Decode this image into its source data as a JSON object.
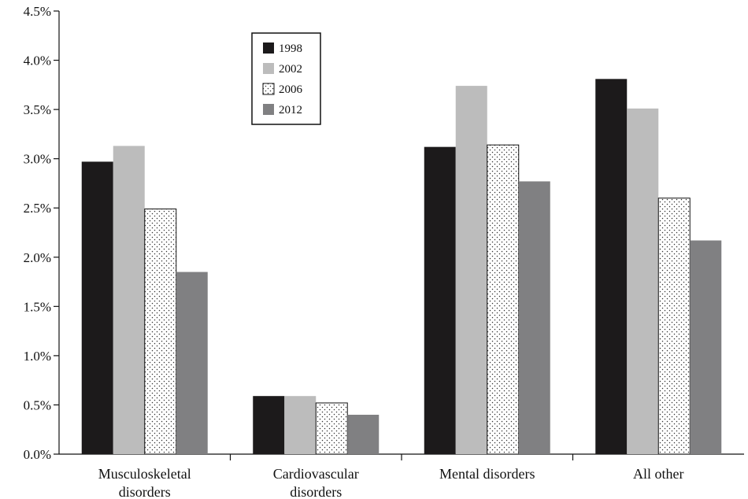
{
  "chart_data": {
    "type": "bar",
    "title": "",
    "xlabel": "",
    "ylabel": "",
    "categories": [
      [
        "Musculoskeletal",
        "disorders"
      ],
      [
        "Cardiovascular",
        "disorders"
      ],
      [
        "Mental disorders"
      ],
      [
        "All other"
      ]
    ],
    "series": [
      {
        "name": "1998",
        "values": [
          2.97,
          0.59,
          3.12,
          3.81
        ],
        "color": "#1c1a1b",
        "pattern": "solid"
      },
      {
        "name": "2002",
        "values": [
          3.13,
          0.59,
          3.74,
          3.51
        ],
        "color": "#bcbcbc",
        "pattern": "solid"
      },
      {
        "name": "2006",
        "values": [
          2.49,
          0.52,
          3.14,
          2.6
        ],
        "color": "#ffffff",
        "pattern": "dots"
      },
      {
        "name": "2012",
        "values": [
          1.85,
          0.4,
          2.77,
          2.17
        ],
        "color": "#808082",
        "pattern": "solid"
      }
    ],
    "ylim": [
      0,
      4.5
    ],
    "yticks": [
      "0.0%",
      "0.5%",
      "1.0%",
      "1.5%",
      "2.0%",
      "2.5%",
      "3.0%",
      "3.5%",
      "4.0%",
      "4.5%"
    ],
    "grid": false,
    "legend_position": "top-left-center"
  }
}
